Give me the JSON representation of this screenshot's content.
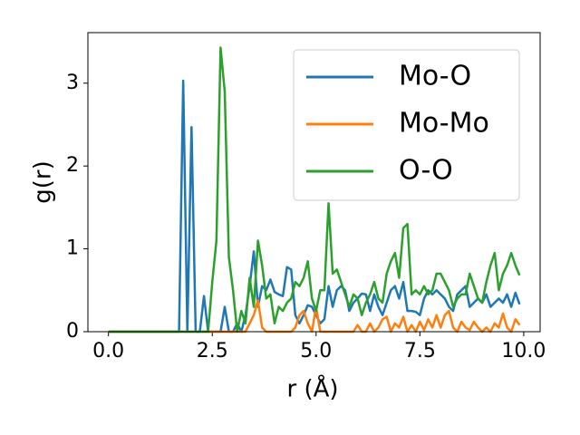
{
  "chart_data": {
    "type": "line",
    "x": [
      0,
      0.1,
      0.2,
      0.3,
      0.4,
      0.5,
      0.6,
      0.7,
      0.8,
      0.9,
      1,
      1.1,
      1.2,
      1.3,
      1.4,
      1.5,
      1.6,
      1.7,
      1.8,
      1.9,
      2,
      2.1,
      2.2,
      2.3,
      2.4,
      2.5,
      2.6,
      2.7,
      2.8,
      2.9,
      3,
      3.1,
      3.2,
      3.3,
      3.4,
      3.5,
      3.6,
      3.7,
      3.8,
      3.9,
      4,
      4.1,
      4.2,
      4.3,
      4.4,
      4.5,
      4.6,
      4.7,
      4.8,
      4.9,
      5,
      5.1,
      5.2,
      5.3,
      5.4,
      5.5,
      5.6,
      5.7,
      5.8,
      5.9,
      6,
      6.1,
      6.2,
      6.3,
      6.4,
      6.5,
      6.6,
      6.7,
      6.8,
      6.9,
      7,
      7.1,
      7.2,
      7.3,
      7.4,
      7.5,
      7.6,
      7.7,
      7.8,
      7.9,
      8,
      8.1,
      8.2,
      8.3,
      8.4,
      8.5,
      8.6,
      8.7,
      8.8,
      8.9,
      9,
      9.1,
      9.2,
      9.3,
      9.4,
      9.5,
      9.6,
      9.7,
      9.8,
      9.9
    ],
    "series": [
      {
        "name": "Mo-O",
        "color": "#1f77b4",
        "values": [
          0,
          0,
          0,
          0,
          0,
          0,
          0,
          0,
          0,
          0,
          0,
          0,
          0,
          0,
          0,
          0,
          0,
          0,
          3.03,
          0,
          2.47,
          0,
          0,
          0.43,
          0,
          0,
          0,
          0,
          0.3,
          0,
          0,
          0.1,
          0,
          0.2,
          0.55,
          0.97,
          0.3,
          0.55,
          0.5,
          0.63,
          0.48,
          0.45,
          0.43,
          0.78,
          0.75,
          0.2,
          0.1,
          0.2,
          0.32,
          0.3,
          0.2,
          0.1,
          0.15,
          0.55,
          0.3,
          0.5,
          0.55,
          0.5,
          0.25,
          0.35,
          0.4,
          0.46,
          0.45,
          0.25,
          0.45,
          0.3,
          0.2,
          0.35,
          0.5,
          0.55,
          0.4,
          0.6,
          0.25,
          0.25,
          0.24,
          0.2,
          0.4,
          0.5,
          0.45,
          0.5,
          0.45,
          0.4,
          0.3,
          0.25,
          0.45,
          0.5,
          0.55,
          0.3,
          0.35,
          0.4,
          0.35,
          0.45,
          0.3,
          0.35,
          0.4,
          0.35,
          0.45,
          0.3,
          0.47,
          0.33
        ]
      },
      {
        "name": "Mo-Mo",
        "color": "#ff7f0e",
        "values": [
          0,
          0,
          0,
          0,
          0,
          0,
          0,
          0,
          0,
          0,
          0,
          0,
          0,
          0,
          0,
          0,
          0,
          0,
          0,
          0,
          0,
          0,
          0,
          0,
          0,
          0,
          0,
          0,
          0,
          0,
          0,
          0,
          0,
          0,
          0.1,
          0.2,
          0.38,
          0.05,
          0,
          0,
          0,
          0,
          0,
          0,
          0,
          0.05,
          0.2,
          0.25,
          0.1,
          0,
          0.3,
          0,
          0,
          0,
          0,
          0,
          0,
          0,
          0,
          0,
          0.08,
          0,
          0,
          0.1,
          0,
          0.05,
          0.15,
          0.18,
          0,
          0.1,
          0.05,
          0.18,
          0,
          0.08,
          0,
          0.12,
          0.02,
          0.15,
          0.05,
          0.2,
          0.05,
          0.2,
          0.25,
          0.05,
          0,
          0.12,
          0.05,
          0.02,
          0.12,
          0.05,
          0,
          0.05,
          0,
          0.1,
          0.05,
          0.22,
          0.05,
          0,
          0.15,
          0.08
        ]
      },
      {
        "name": "O-O",
        "color": "#2ca02c",
        "values": [
          0,
          0,
          0,
          0,
          0,
          0,
          0,
          0,
          0,
          0,
          0,
          0,
          0,
          0,
          0,
          0,
          0,
          0,
          0,
          0,
          0,
          0,
          0,
          0,
          0,
          0.6,
          1.1,
          3.43,
          2.9,
          0.9,
          0.5,
          0,
          0.25,
          0.1,
          0.65,
          0.3,
          1.1,
          0.8,
          0.4,
          0.45,
          0.1,
          0.3,
          0.25,
          0.35,
          0.4,
          0.6,
          0.55,
          0.65,
          0.85,
          0.4,
          0.25,
          0.5,
          0.5,
          1.55,
          0.7,
          0.75,
          0.6,
          0.45,
          0.3,
          0.45,
          0.4,
          0.2,
          0.35,
          0.45,
          0.6,
          0.4,
          0.35,
          0.7,
          0.85,
          0.95,
          0.65,
          1.25,
          1.3,
          0.45,
          0.5,
          0.45,
          0.55,
          0.45,
          0.5,
          0.7,
          0.7,
          0.6,
          0.5,
          0.3,
          0.4,
          0.45,
          0.45,
          0.7,
          0.55,
          0.4,
          0.35,
          0.6,
          0.8,
          0.95,
          0.5,
          0.7,
          0.8,
          0.95,
          0.8,
          0.68
        ]
      }
    ],
    "xlabel": "r (Å)",
    "ylabel": "g(r)",
    "xlim": [
      -0.495,
      10.395
    ],
    "ylim": [
      0,
      3.61
    ],
    "xticks": [
      {
        "value": 0,
        "label": "0.0"
      },
      {
        "value": 2.5,
        "label": "2.5"
      },
      {
        "value": 5,
        "label": "5.0"
      },
      {
        "value": 7.5,
        "label": "7.5"
      },
      {
        "value": 10,
        "label": "10.0"
      }
    ],
    "yticks": [
      0,
      1,
      2,
      3
    ],
    "legend": "upper right"
  }
}
